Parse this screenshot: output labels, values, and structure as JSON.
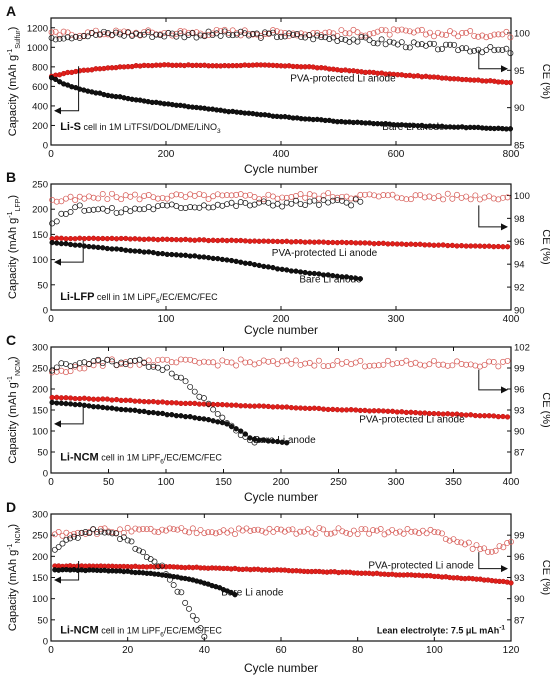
{
  "colors": {
    "bare": "#111111",
    "pva": "#e0201b",
    "ce_pva": "#d65a55",
    "axis": "#111111",
    "background": "#ffffff"
  },
  "marker_style": {
    "capacity": "filled-circle",
    "ce": "open-circle"
  },
  "panels": [
    {
      "letter": "A",
      "ylabel_main": "Capacity (mAh g",
      "ylabel_sup": "-1",
      "ylabel_sub": "Sulfur",
      "ylabel_close": ")",
      "ce_label": "CE (%)",
      "xlabel": "Cycle number",
      "xlim": [
        0,
        800
      ],
      "ylim": [
        0,
        1300
      ],
      "ce_lim": [
        85,
        102
      ],
      "x_ticks": [
        0,
        200,
        400,
        600,
        800
      ],
      "y_ticks": [
        0,
        200,
        400,
        600,
        800,
        1000,
        1200
      ],
      "ce_ticks": [
        85,
        90,
        95,
        100
      ],
      "cell_bold": "Li-S",
      "cell_text": "cell in 1M LiTFSI/DOL/DME/LiNO",
      "cell_sub": "3",
      "cell_sub_after": "",
      "label_pva": "PVA-protected Li anode",
      "label_bare": "Bare Li anode",
      "lean_text": ""
    },
    {
      "letter": "B",
      "ylabel_main": "Capacity (mAh g",
      "ylabel_sup": "-1",
      "ylabel_sub": "LFP",
      "ylabel_close": ")",
      "ce_label": "CE (%)",
      "xlabel": "Cycle number",
      "xlim": [
        0,
        400
      ],
      "ylim": [
        0,
        250
      ],
      "ce_lim": [
        90,
        101
      ],
      "x_ticks": [
        0,
        100,
        200,
        300,
        400
      ],
      "y_ticks": [
        0,
        50,
        100,
        150,
        200,
        250
      ],
      "ce_ticks": [
        90,
        92,
        94,
        96,
        98,
        100
      ],
      "cell_bold": "Li-LFP",
      "cell_text": "cell in 1M LiPF",
      "cell_sub": "6",
      "cell_sub_after": "/EC/EMC/FEC",
      "label_pva": "PVA-protected Li anode",
      "label_bare": "Bare Li anode",
      "lean_text": ""
    },
    {
      "letter": "C",
      "ylabel_main": "Capacity (mAh g",
      "ylabel_sup": "-1",
      "ylabel_sub": "NCM",
      "ylabel_close": ")",
      "ce_label": "CE (%)",
      "xlabel": "Cycle number",
      "xlim": [
        0,
        400
      ],
      "ylim": [
        0,
        300
      ],
      "ce_lim": [
        84,
        102
      ],
      "x_ticks": [
        0,
        50,
        100,
        150,
        200,
        250,
        300,
        350,
        400
      ],
      "y_ticks": [
        0,
        50,
        100,
        150,
        200,
        250,
        300
      ],
      "ce_ticks": [
        87,
        90,
        93,
        96,
        99,
        102
      ],
      "cell_bold": "Li-NCM",
      "cell_text": "cell in 1M LiPF",
      "cell_sub": "6",
      "cell_sub_after": "/EC/EMC/FEC",
      "label_pva": "PVA-protected Li anode",
      "label_bare": "Bare Li anode",
      "lean_text": ""
    },
    {
      "letter": "D",
      "ylabel_main": "Capacity (mAh g",
      "ylabel_sup": "-1",
      "ylabel_sub": "NCM",
      "ylabel_close": ")",
      "ce_label": "CE (%)",
      "xlabel": "Cycle number",
      "xlim": [
        0,
        120
      ],
      "ylim": [
        0,
        300
      ],
      "ce_lim": [
        84,
        102
      ],
      "x_ticks": [
        0,
        20,
        40,
        60,
        80,
        100,
        120
      ],
      "y_ticks": [
        0,
        50,
        100,
        150,
        200,
        250,
        300
      ],
      "ce_ticks": [
        87,
        90,
        93,
        96,
        99
      ],
      "cell_bold": "Li-NCM",
      "cell_text": "cell in 1M LiPF",
      "cell_sub": "6",
      "cell_sub_after": "/EC/EMC/FEC",
      "label_pva": "PVA-protected Li anode",
      "label_bare": "Bare Li anode",
      "lean_text": "Lean electrolyte: 7.5 μL mAh",
      "lean_sup": "-1"
    }
  ],
  "chart_data": [
    {
      "type": "scatter",
      "panel": "A",
      "xlabel": "Cycle number",
      "ylabel": "Capacity (mAh g-1 Sulfur)",
      "y2label": "CE (%)",
      "xlim": [
        0,
        800
      ],
      "ylim": [
        0,
        1300
      ],
      "y2lim": [
        85,
        102
      ],
      "series": [
        {
          "name": "PVA-protected Li anode",
          "quantity": "capacity",
          "x": [
            1,
            20,
            50,
            100,
            150,
            200,
            250,
            300,
            350,
            400,
            450,
            500,
            550,
            600,
            650,
            700,
            750,
            800
          ],
          "y": [
            700,
            730,
            760,
            790,
            810,
            820,
            815,
            810,
            820,
            810,
            800,
            770,
            745,
            720,
            700,
            680,
            660,
            640
          ]
        },
        {
          "name": "Bare Li anode",
          "quantity": "capacity",
          "x": [
            1,
            20,
            50,
            100,
            150,
            200,
            250,
            300,
            350,
            400,
            450,
            500,
            550,
            600,
            650,
            700,
            750,
            800
          ],
          "y": [
            690,
            630,
            570,
            510,
            460,
            420,
            385,
            350,
            320,
            290,
            265,
            240,
            225,
            210,
            195,
            185,
            175,
            165
          ]
        },
        {
          "name": "PVA-protected Li anode",
          "quantity": "CE",
          "x": [
            1,
            100,
            200,
            300,
            400,
            500,
            600,
            700,
            800
          ],
          "y": [
            99.8,
            100.0,
            100.0,
            100.1,
            100.0,
            100.0,
            100.1,
            99.9,
            99.8
          ]
        },
        {
          "name": "Bare Li anode",
          "quantity": "CE",
          "x": [
            1,
            100,
            200,
            300,
            400,
            500,
            550,
            600,
            650,
            700,
            750,
            800
          ],
          "y": [
            99.5,
            99.9,
            99.8,
            99.8,
            99.7,
            99.3,
            99.0,
            98.6,
            98.2,
            98.0,
            97.8,
            97.5
          ]
        }
      ]
    },
    {
      "type": "scatter",
      "panel": "B",
      "xlabel": "Cycle number",
      "ylabel": "Capacity (mAh g-1 LFP)",
      "y2label": "CE (%)",
      "xlim": [
        0,
        400
      ],
      "ylim": [
        0,
        250
      ],
      "y2lim": [
        90,
        101
      ],
      "series": [
        {
          "name": "PVA-protected Li anode",
          "quantity": "capacity",
          "x": [
            1,
            50,
            100,
            150,
            200,
            250,
            300,
            350,
            400
          ],
          "y": [
            142,
            142,
            140,
            138,
            136,
            134,
            131,
            128,
            125
          ]
        },
        {
          "name": "Bare Li anode",
          "quantity": "capacity",
          "x": [
            1,
            25,
            50,
            75,
            100,
            125,
            150,
            175,
            200,
            225,
            250,
            270
          ],
          "y": [
            134,
            128,
            122,
            117,
            111,
            107,
            100,
            91,
            81,
            73,
            67,
            62
          ]
        },
        {
          "name": "PVA-protected Li anode",
          "quantity": "CE",
          "x": [
            1,
            50,
            100,
            150,
            200,
            250,
            300,
            350,
            400
          ],
          "y": [
            99.5,
            99.9,
            99.9,
            99.9,
            99.9,
            100.0,
            99.9,
            99.9,
            99.9
          ]
        },
        {
          "name": "Bare Li anode",
          "quantity": "CE",
          "x": [
            1,
            20,
            40,
            60,
            80,
            100,
            150,
            200,
            250,
            270
          ],
          "y": [
            97.5,
            99.0,
            98.8,
            98.6,
            98.9,
            99.0,
            99.2,
            99.3,
            99.4,
            99.4
          ]
        }
      ]
    },
    {
      "type": "scatter",
      "panel": "C",
      "xlabel": "Cycle number",
      "ylabel": "Capacity (mAh g-1 NCM)",
      "y2label": "CE (%)",
      "xlim": [
        0,
        400
      ],
      "ylim": [
        0,
        300
      ],
      "y2lim": [
        84,
        102
      ],
      "series": [
        {
          "name": "PVA-protected Li anode",
          "quantity": "capacity",
          "x": [
            1,
            50,
            100,
            150,
            200,
            250,
            300,
            350,
            400
          ],
          "y": [
            180,
            175,
            168,
            162,
            157,
            151,
            146,
            140,
            133
          ]
        },
        {
          "name": "Bare Li anode",
          "quantity": "capacity",
          "x": [
            1,
            25,
            50,
            75,
            100,
            125,
            150,
            165,
            175,
            185,
            195,
            205
          ],
          "y": [
            168,
            162,
            155,
            148,
            140,
            132,
            120,
            100,
            80,
            78,
            75,
            72
          ]
        },
        {
          "name": "PVA-protected Li anode",
          "quantity": "CE",
          "x": [
            1,
            50,
            100,
            150,
            200,
            250,
            300,
            350,
            400
          ],
          "y": [
            98.5,
            99.8,
            99.8,
            99.8,
            99.7,
            99.7,
            99.6,
            99.6,
            99.6
          ]
        },
        {
          "name": "Bare Li anode",
          "quantity": "CE",
          "x": [
            1,
            25,
            50,
            75,
            100,
            110,
            120,
            130,
            140,
            150,
            160,
            170,
            180
          ],
          "y": [
            99.0,
            99.7,
            99.8,
            99.9,
            99.0,
            98.0,
            96.5,
            95.0,
            93.5,
            92.0,
            90.5,
            89.0,
            87.5
          ]
        }
      ]
    },
    {
      "type": "scatter",
      "panel": "D",
      "xlabel": "Cycle number",
      "ylabel": "Capacity (mAh g-1 NCM)",
      "y2label": "CE (%)",
      "xlim": [
        0,
        120
      ],
      "ylim": [
        0,
        300
      ],
      "y2lim": [
        84,
        102
      ],
      "series": [
        {
          "name": "PVA-protected Li anode",
          "quantity": "capacity",
          "x": [
            1,
            10,
            20,
            30,
            40,
            50,
            60,
            70,
            80,
            90,
            100,
            110,
            120
          ],
          "y": [
            177,
            177,
            176,
            175,
            173,
            170,
            167,
            164,
            161,
            157,
            153,
            147,
            138
          ]
        },
        {
          "name": "Bare Li anode",
          "quantity": "capacity",
          "x": [
            1,
            5,
            10,
            15,
            20,
            25,
            30,
            35,
            40,
            45,
            48
          ],
          "y": [
            168,
            168,
            167,
            166,
            164,
            160,
            155,
            148,
            137,
            122,
            110
          ]
        },
        {
          "name": "PVA-protected Li anode",
          "quantity": "CE",
          "x": [
            1,
            10,
            20,
            30,
            40,
            50,
            60,
            70,
            80,
            90,
            100,
            105,
            110,
            115,
            120
          ],
          "y": [
            99.2,
            99.6,
            99.6,
            99.6,
            99.6,
            99.6,
            99.6,
            99.6,
            99.6,
            99.5,
            99.5,
            98.0,
            97.5,
            96.5,
            98.5
          ]
        },
        {
          "name": "Bare Li anode",
          "quantity": "CE",
          "x": [
            1,
            5,
            10,
            15,
            20,
            25,
            28,
            30,
            32,
            34,
            36,
            38,
            40
          ],
          "y": [
            96.5,
            98.5,
            99.5,
            99.4,
            98.5,
            96.0,
            95.0,
            93.5,
            92.0,
            90.5,
            89.0,
            87.0,
            85.0
          ]
        }
      ]
    }
  ]
}
